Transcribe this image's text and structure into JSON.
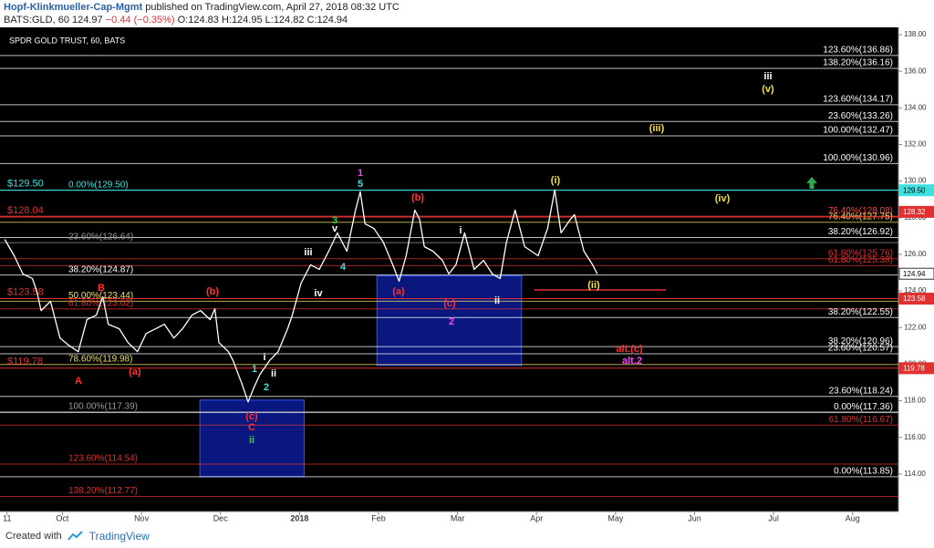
{
  "header": {
    "author": "Hopf-Klinkmueller-Cap-Mgmt",
    "published": "published on TradingView.com, April 27, 2018 08:32 UTC",
    "symbol": "BATS:GLD, 60",
    "last": "124.97",
    "change": "−0.44 (−0.35%)",
    "ohlc": "O:124.83 H:124.95 L:124.82 C:124.94"
  },
  "footer": {
    "created": "Created with",
    "brand": "TradingView"
  },
  "chart_data": {
    "type": "line",
    "title": "SPDR GOLD TRUST, 60, BATS",
    "xlim": [
      9.21,
      20.58
    ],
    "xticks": [
      {
        "value": 9.3,
        "label": "11"
      },
      {
        "value": 10,
        "label": "Oct"
      },
      {
        "value": 11,
        "label": "Nov"
      },
      {
        "value": 12,
        "label": "Dec"
      },
      {
        "value": 13,
        "label": "2018"
      },
      {
        "value": 14,
        "label": "Feb"
      },
      {
        "value": 15,
        "label": "Mar"
      },
      {
        "value": 16,
        "label": "Apr"
      },
      {
        "value": 17,
        "label": "May"
      },
      {
        "value": 18,
        "label": "Jun"
      },
      {
        "value": 19,
        "label": "Jul"
      },
      {
        "value": 20,
        "label": "Aug"
      }
    ],
    "ylim": [
      111.95,
      138.4
    ],
    "yticks": [
      {
        "value": 114,
        "label": "114.00"
      },
      {
        "value": 116,
        "label": "116.00"
      },
      {
        "value": 118,
        "label": "118.00"
      },
      {
        "value": 120,
        "label": "120.00"
      },
      {
        "value": 122,
        "label": "122.00"
      },
      {
        "value": 124,
        "label": "124.00"
      },
      {
        "value": 126,
        "label": "126.00"
      },
      {
        "value": 128,
        "label": "128.00"
      },
      {
        "value": 130,
        "label": "130.00"
      },
      {
        "value": 132,
        "label": "132.00"
      },
      {
        "value": 134,
        "label": "134.00"
      },
      {
        "value": 136,
        "label": "136.00"
      },
      {
        "value": 138,
        "label": "138.00"
      }
    ],
    "series": [
      {
        "name": "GLD",
        "color": "#ffffff",
        "x": [
          9.27,
          9.39,
          9.5,
          9.62,
          9.68,
          9.73,
          9.85,
          9.97,
          10.08,
          10.2,
          10.31,
          10.43,
          10.51,
          10.58,
          10.72,
          10.83,
          10.95,
          11.06,
          11.18,
          11.29,
          11.41,
          11.52,
          11.64,
          11.75,
          11.87,
          11.93,
          11.98,
          12.1,
          12.16,
          12.27,
          12.35,
          12.42,
          12.5,
          12.62,
          12.73,
          12.85,
          12.91,
          13.02,
          13.14,
          13.25,
          13.37,
          13.48,
          13.6,
          13.71,
          13.77,
          13.83,
          13.94,
          14.06,
          14.18,
          14.26,
          14.35,
          14.46,
          14.52,
          14.58,
          14.69,
          14.81,
          14.89,
          14.98,
          15.09,
          15.21,
          15.33,
          15.44,
          15.54,
          15.62,
          15.73,
          15.85,
          16.02,
          16.14,
          16.23,
          16.31,
          16.43,
          16.48,
          16.6,
          16.71,
          16.77
        ],
        "values": [
          126.82,
          125.92,
          124.93,
          124.68,
          123.93,
          122.93,
          123.43,
          121.43,
          121.03,
          120.68,
          122.43,
          122.68,
          123.68,
          122.18,
          121.93,
          121.18,
          120.68,
          121.68,
          121.93,
          122.18,
          121.43,
          121.93,
          122.68,
          122.93,
          122.43,
          123.03,
          121.18,
          120.68,
          120.19,
          118.94,
          117.94,
          118.69,
          119.44,
          120.19,
          120.68,
          121.93,
          122.68,
          124.43,
          125.43,
          125.18,
          126.17,
          127.17,
          126.17,
          128.42,
          129.42,
          127.67,
          127.42,
          126.67,
          125.43,
          124.53,
          125.92,
          128.42,
          127.92,
          126.42,
          126.17,
          125.67,
          124.93,
          125.43,
          127.17,
          125.18,
          125.67,
          124.93,
          124.68,
          126.67,
          128.42,
          126.42,
          125.92,
          127.42,
          129.52,
          127.17,
          127.92,
          128.17,
          126.17,
          125.43,
          124.93
        ]
      }
    ],
    "boxes": [
      {
        "x": [
          11.74,
          13.06
        ],
        "y": [
          113.85,
          118.04
        ],
        "color": "#0b1a8c"
      },
      {
        "x": [
          13.98,
          15.81
        ],
        "y": [
          119.93,
          124.83
        ],
        "color": "#0b1a8c"
      }
    ],
    "levels": [
      {
        "label": "123.60%(136.86)",
        "value": 136.86,
        "color": "#ffffff",
        "side": "right"
      },
      {
        "label": "138.20%(136.16)",
        "value": 136.16,
        "color": "#ffffff",
        "side": "right"
      },
      {
        "label": "123.60%(134.17)",
        "value": 134.17,
        "color": "#ffffff",
        "side": "right"
      },
      {
        "label": "23.60%(133.26)",
        "value": 133.26,
        "color": "#ffffff",
        "side": "right"
      },
      {
        "label": "100.00%(132.47)",
        "value": 132.47,
        "color": "#ffffff",
        "side": "right"
      },
      {
        "label": "100.00%(130.96)",
        "value": 130.96,
        "color": "#ffffff",
        "side": "right"
      },
      {
        "label": "0.00%(129.50)",
        "value": 129.5,
        "color": "#3fe0e0",
        "side": "left"
      },
      {
        "label": "76.40%(128.08)",
        "value": 128.08,
        "color": "#ff4040",
        "side": "right"
      },
      {
        "label": "76.40%(127.75)",
        "value": 127.75,
        "color": "#f0e060",
        "side": "right"
      },
      {
        "label": "38.20%(126.92)",
        "value": 126.92,
        "color": "#ffffff",
        "side": "right"
      },
      {
        "label": "23.60%(126.64)",
        "value": 126.64,
        "color": "#9a9a9a",
        "side": "left"
      },
      {
        "label": "61.80%(125.76)",
        "value": 125.76,
        "color": "#e03030",
        "side": "right"
      },
      {
        "label": "61.80%(125.38)",
        "value": 125.38,
        "color": "#e03030",
        "side": "right"
      },
      {
        "label": "38.20%(124.87)",
        "value": 124.87,
        "color": "#ffffff",
        "side": "left"
      },
      {
        "label": "50.00%(123.44)",
        "value": 123.44,
        "color": "#f0e060",
        "side": "left"
      },
      {
        "label": "61.80%(123.02)",
        "value": 123.02,
        "color": "#e03030",
        "side": "left"
      },
      {
        "label": "38.20%(122.55)",
        "value": 122.55,
        "color": "#ffffff",
        "side": "right"
      },
      {
        "label": "38.20%(120.96)",
        "value": 120.96,
        "color": "#ffffff",
        "side": "right"
      },
      {
        "label": "23.60%(120.57)",
        "value": 120.57,
        "color": "#ffffff",
        "side": "right"
      },
      {
        "label": "78.60%(119.98)",
        "value": 119.98,
        "color": "#f0e060",
        "side": "left"
      },
      {
        "label": "23.60%(118.24)",
        "value": 118.24,
        "color": "#ffffff",
        "side": "right"
      },
      {
        "label": "100.00%(117.39)",
        "value": 117.39,
        "color": "#9a9a9a",
        "side": "left"
      },
      {
        "label": "0.00%(117.36)",
        "value": 117.36,
        "color": "#ffffff",
        "side": "right"
      },
      {
        "label": "61.80%(116.67)",
        "value": 116.67,
        "color": "#e03030",
        "side": "right"
      },
      {
        "label": "123.60%(114.54)",
        "value": 114.54,
        "color": "#e03030",
        "side": "left"
      },
      {
        "label": "0.00%(113.85)",
        "value": 113.85,
        "color": "#ffffff",
        "side": "right"
      },
      {
        "label": "138.20%(112.77)",
        "value": 112.77,
        "color": "#e03030",
        "side": "left"
      }
    ],
    "price_lines": [
      {
        "label": "$129.50",
        "value": 129.5,
        "color": "#3fe0e0"
      },
      {
        "label": "$128.04",
        "value": 128.04,
        "color": "#e03030"
      },
      {
        "label": "$123.58",
        "value": 123.58,
        "color": "#e03030"
      },
      {
        "label": "$119.78",
        "value": 119.78,
        "color": "#e03030"
      }
    ],
    "axis_markers": [
      {
        "value": 129.5,
        "label": "129.50",
        "color": "#3fe0e0"
      },
      {
        "value": 128.32,
        "label": "128.32",
        "color": "#e03030"
      },
      {
        "value": 124.94,
        "label": "124.94",
        "color": "#ffffff"
      },
      {
        "value": 123.58,
        "label": "123.58",
        "color": "#e03030"
      },
      {
        "value": 119.78,
        "label": "119.78",
        "color": "#e03030"
      }
    ],
    "annotations": [
      {
        "text": "1",
        "color": "#ff40ff"
      },
      {
        "text": "5",
        "color": "#40e0e0"
      },
      {
        "text": "3",
        "color": "#40d040"
      },
      {
        "text": "v",
        "color": "#ffffff"
      },
      {
        "text": "iii",
        "color": "#ffffff"
      },
      {
        "text": "4",
        "color": "#40e0e0"
      },
      {
        "text": "iv",
        "color": "#ffffff"
      },
      {
        "text": "(b)",
        "color": "#ff3030"
      },
      {
        "text": "(a)",
        "color": "#ff3030"
      },
      {
        "text": "(c)",
        "color": "#ff3030"
      },
      {
        "text": "2",
        "color": "#ff40ff"
      },
      {
        "text": "i",
        "color": "#ffffff"
      },
      {
        "text": "ii",
        "color": "#ffffff"
      },
      {
        "text": "(i)",
        "color": "#f0e040"
      },
      {
        "text": "(ii)",
        "color": "#f0e040"
      },
      {
        "text": "(iv)",
        "color": "#f0e040"
      },
      {
        "text": "(iii)",
        "color": "#f0e040"
      },
      {
        "text": "iii",
        "color": "#ffffff"
      },
      {
        "text": "(v)",
        "color": "#f0e040"
      },
      {
        "text": "alt.(c)",
        "color": "#ff3030"
      },
      {
        "text": "alt.2",
        "color": "#ff40ff"
      },
      {
        "text": "B",
        "color": "#ff3030"
      },
      {
        "text": "(b)",
        "color": "#ff3030"
      },
      {
        "text": "A",
        "color": "#ff3030"
      },
      {
        "text": "(a)",
        "color": "#ff3030"
      },
      {
        "text": "(c)",
        "color": "#ff3030"
      },
      {
        "text": "C",
        "color": "#ff3030"
      },
      {
        "text": "ii",
        "color": "#40d040"
      },
      {
        "text": "1",
        "color": "#40e0e0"
      },
      {
        "text": "i",
        "color": "#ffffff"
      },
      {
        "text": "2",
        "color": "#40e0e0"
      },
      {
        "text": "ii",
        "color": "#ffffff"
      }
    ]
  }
}
